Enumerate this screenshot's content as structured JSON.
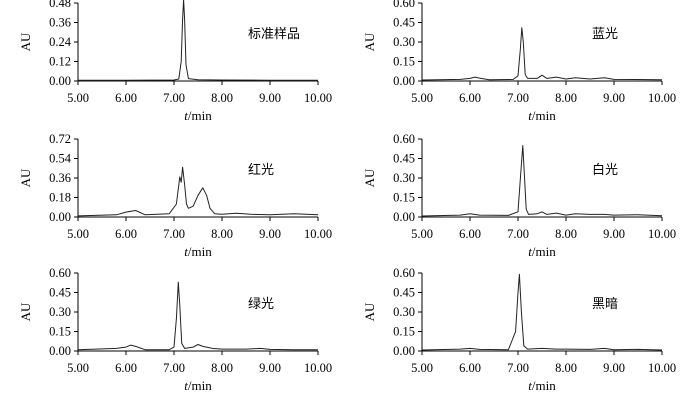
{
  "chart_data": [
    {
      "type": "line",
      "label": "标准样品",
      "xlabel_var": "t",
      "xlabel_unit": "/min",
      "ylabel": "AU",
      "xlim": [
        5.0,
        10.0
      ],
      "ylim": [
        0.0,
        0.48
      ],
      "xticks": [
        "5.00",
        "6.00",
        "7.00",
        "8.00",
        "9.00",
        "10.00"
      ],
      "yticks": [
        "0.00",
        "0.12",
        "0.24",
        "0.36",
        "0.48"
      ],
      "series": [
        {
          "x": [
            5.0,
            6.0,
            7.0,
            7.1,
            7.15,
            7.18,
            7.2,
            7.22,
            7.25,
            7.3,
            7.5,
            8.0,
            9.0,
            10.0
          ],
          "y": [
            0.005,
            0.005,
            0.006,
            0.012,
            0.12,
            0.38,
            0.5,
            0.38,
            0.1,
            0.015,
            0.008,
            0.006,
            0.005,
            0.005
          ]
        }
      ]
    },
    {
      "type": "line",
      "label": "蓝光",
      "xlabel_var": "t",
      "xlabel_unit": "/min",
      "ylabel": "AU",
      "xlim": [
        5.0,
        10.0
      ],
      "ylim": [
        0.0,
        0.6
      ],
      "xticks": [
        "5.00",
        "6.00",
        "7.00",
        "8.00",
        "9.00",
        "10.00"
      ],
      "yticks": [
        "0.00",
        "0.15",
        "0.30",
        "0.45",
        "0.60"
      ],
      "series": [
        {
          "x": [
            5.0,
            5.8,
            6.0,
            6.1,
            6.2,
            6.4,
            6.9,
            7.0,
            7.05,
            7.08,
            7.11,
            7.15,
            7.2,
            7.4,
            7.5,
            7.6,
            7.8,
            8.0,
            8.2,
            8.5,
            8.8,
            9.0,
            10.0
          ],
          "y": [
            0.008,
            0.012,
            0.02,
            0.03,
            0.022,
            0.01,
            0.012,
            0.04,
            0.25,
            0.41,
            0.3,
            0.05,
            0.02,
            0.02,
            0.045,
            0.02,
            0.03,
            0.015,
            0.025,
            0.015,
            0.025,
            0.012,
            0.01
          ]
        }
      ]
    },
    {
      "type": "line",
      "label": "红光",
      "xlabel_var": "t",
      "xlabel_unit": "/min",
      "ylabel": "AU",
      "xlim": [
        5.0,
        10.0
      ],
      "ylim": [
        0.0,
        0.72
      ],
      "xticks": [
        "5.00",
        "6.00",
        "7.00",
        "8.00",
        "9.00",
        "10.00"
      ],
      "yticks": [
        "0.00",
        "0.18",
        "0.36",
        "0.54",
        "0.72"
      ],
      "series": [
        {
          "x": [
            5.0,
            5.8,
            6.0,
            6.2,
            6.4,
            6.9,
            7.05,
            7.12,
            7.15,
            7.18,
            7.22,
            7.26,
            7.3,
            7.4,
            7.5,
            7.6,
            7.68,
            7.75,
            7.85,
            8.0,
            8.3,
            8.6,
            9.0,
            9.5,
            10.0
          ],
          "y": [
            0.01,
            0.02,
            0.045,
            0.06,
            0.02,
            0.03,
            0.12,
            0.37,
            0.32,
            0.46,
            0.3,
            0.12,
            0.08,
            0.1,
            0.2,
            0.27,
            0.2,
            0.08,
            0.03,
            0.025,
            0.035,
            0.025,
            0.02,
            0.03,
            0.02
          ]
        }
      ]
    },
    {
      "type": "line",
      "label": "白光",
      "xlabel_var": "t",
      "xlabel_unit": "/min",
      "ylabel": "AU",
      "xlim": [
        5.0,
        10.0
      ],
      "ylim": [
        0.0,
        0.6
      ],
      "xticks": [
        "5.00",
        "6.00",
        "7.00",
        "8.00",
        "9.00",
        "10.00"
      ],
      "yticks": [
        "0.00",
        "0.15",
        "0.30",
        "0.45",
        "0.60"
      ],
      "series": [
        {
          "x": [
            5.0,
            5.8,
            6.0,
            6.2,
            6.8,
            7.0,
            7.05,
            7.1,
            7.13,
            7.17,
            7.22,
            7.4,
            7.5,
            7.6,
            7.8,
            8.0,
            8.2,
            8.5,
            8.8,
            9.0,
            9.5,
            10.0
          ],
          "y": [
            0.008,
            0.015,
            0.025,
            0.015,
            0.012,
            0.04,
            0.3,
            0.55,
            0.35,
            0.06,
            0.02,
            0.025,
            0.04,
            0.02,
            0.03,
            0.015,
            0.025,
            0.02,
            0.02,
            0.015,
            0.018,
            0.01
          ]
        }
      ]
    },
    {
      "type": "line",
      "label": "绿光",
      "xlabel_var": "t",
      "xlabel_unit": "/min",
      "ylabel": "AU",
      "xlim": [
        5.0,
        10.0
      ],
      "ylim": [
        0.0,
        0.6
      ],
      "xticks": [
        "5.00",
        "6.00",
        "7.00",
        "8.00",
        "9.00",
        "10.00"
      ],
      "yticks": [
        "0.00",
        "0.15",
        "0.30",
        "0.45",
        "0.60"
      ],
      "series": [
        {
          "x": [
            5.0,
            5.8,
            6.0,
            6.1,
            6.2,
            6.4,
            6.9,
            7.0,
            7.05,
            7.09,
            7.12,
            7.16,
            7.22,
            7.4,
            7.5,
            7.6,
            7.8,
            8.0,
            8.5,
            8.8,
            9.0,
            9.5,
            10.0
          ],
          "y": [
            0.01,
            0.02,
            0.03,
            0.045,
            0.035,
            0.01,
            0.01,
            0.03,
            0.25,
            0.53,
            0.35,
            0.06,
            0.02,
            0.03,
            0.05,
            0.035,
            0.02,
            0.015,
            0.015,
            0.02,
            0.012,
            0.01,
            0.01
          ]
        }
      ]
    },
    {
      "type": "line",
      "label": "黑暗",
      "xlabel_var": "t",
      "xlabel_unit": "/min",
      "ylabel": "AU",
      "xlim": [
        5.0,
        10.0
      ],
      "ylim": [
        0.0,
        0.6
      ],
      "xticks": [
        "5.00",
        "6.00",
        "7.00",
        "8.00",
        "9.00",
        "10.00"
      ],
      "yticks": [
        "0.00",
        "0.15",
        "0.30",
        "0.45",
        "0.60"
      ],
      "series": [
        {
          "x": [
            5.0,
            5.8,
            6.0,
            6.2,
            6.8,
            6.95,
            7.0,
            7.03,
            7.07,
            7.12,
            7.2,
            7.5,
            7.8,
            8.0,
            8.5,
            8.8,
            9.0,
            9.5,
            10.0
          ],
          "y": [
            0.008,
            0.015,
            0.02,
            0.012,
            0.01,
            0.15,
            0.45,
            0.59,
            0.3,
            0.04,
            0.015,
            0.02,
            0.015,
            0.015,
            0.012,
            0.02,
            0.01,
            0.012,
            0.008
          ]
        }
      ]
    }
  ]
}
